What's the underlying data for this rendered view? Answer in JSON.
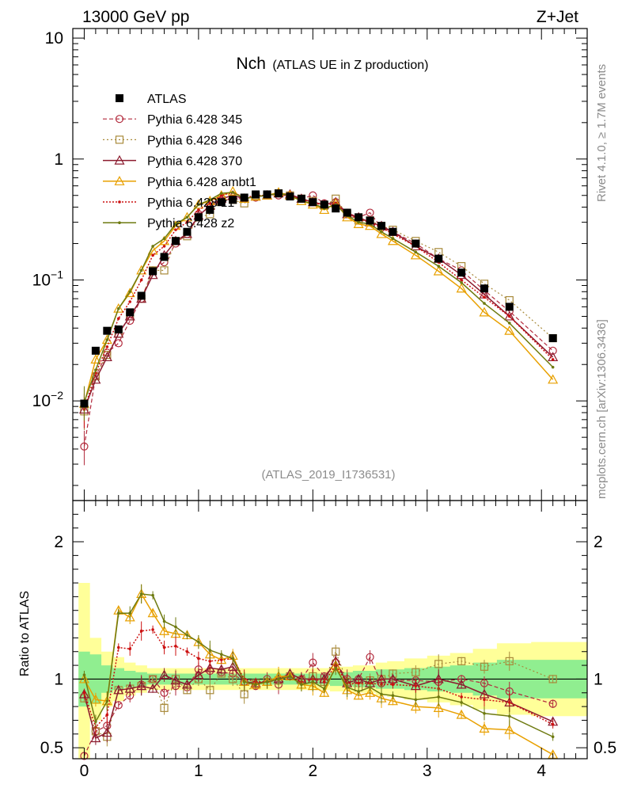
{
  "header": {
    "left": "13000 GeV pp",
    "right": "Z+Jet"
  },
  "side_labels": {
    "rivet": "Rivet 4.1.0, ≥ 1.7M events",
    "mcplots": "mcplots.cern.ch [arXiv:1306.3436]"
  },
  "analysis_id": "(ATLAS_2019_I1736531)",
  "colors": {
    "data": "#000000",
    "p345": "#b22a3c",
    "p346": "#a88a3a",
    "p370": "#8b1a2e",
    "ambt1": "#e8a000",
    "z1": "#cc1010",
    "z2": "#6e7a10",
    "band_inner": "#90ee90",
    "band_outer": "#ffff99"
  },
  "chart_data": [
    {
      "type": "scatter",
      "title": "Nch",
      "subtitle": "(ATLAS UE in Z production)",
      "yscale": "log",
      "xlim": [
        -0.1,
        4.4
      ],
      "ylim": [
        0.0015,
        12
      ],
      "yticks": [
        {
          "value": 10,
          "label": "10"
        },
        {
          "value": 1,
          "label": "1"
        },
        {
          "value": 0.1,
          "label": "10",
          "sup": "−1"
        },
        {
          "value": 0.01,
          "label": "10",
          "sup": "−2"
        }
      ],
      "legend": [
        "ATLAS",
        "Pythia 6.428 345",
        "Pythia 6.428 346",
        "Pythia 6.428 370",
        "Pythia 6.428 ambt1",
        "Pythia 6.428 z1",
        "Pythia 6.428 z2"
      ],
      "x": [
        0.0,
        0.1,
        0.2,
        0.3,
        0.4,
        0.5,
        0.6,
        0.7,
        0.8,
        0.9,
        1.0,
        1.1,
        1.2,
        1.3,
        1.4,
        1.5,
        1.6,
        1.7,
        1.8,
        1.9,
        2.0,
        2.1,
        2.2,
        2.3,
        2.4,
        2.5,
        2.6,
        2.7,
        2.9,
        3.1,
        3.3,
        3.5,
        3.72,
        4.1
      ],
      "data_values": [
        0.0095,
        0.026,
        0.038,
        0.039,
        0.054,
        0.074,
        0.118,
        0.155,
        0.21,
        0.25,
        0.33,
        0.38,
        0.44,
        0.46,
        0.48,
        0.51,
        0.51,
        0.52,
        0.49,
        0.47,
        0.44,
        0.42,
        0.39,
        0.36,
        0.33,
        0.31,
        0.28,
        0.25,
        0.2,
        0.15,
        0.115,
        0.085,
        0.06,
        0.033
      ],
      "series": [
        {
          "name": "Pythia 6.428 345",
          "values": [
            0.0042,
            0.016,
            0.025,
            0.03,
            0.046,
            0.07,
            0.12,
            0.14,
            0.2,
            0.24,
            0.35,
            0.4,
            0.45,
            0.47,
            0.47,
            0.48,
            0.51,
            0.5,
            0.5,
            0.47,
            0.5,
            0.43,
            0.44,
            0.36,
            0.33,
            0.36,
            0.27,
            0.25,
            0.2,
            0.15,
            0.12,
            0.082,
            0.055,
            0.026
          ]
        },
        {
          "name": "Pythia 6.428 346",
          "values": [
            0.0082,
            0.016,
            0.024,
            0.036,
            0.05,
            0.07,
            0.12,
            0.12,
            0.21,
            0.23,
            0.33,
            0.35,
            0.46,
            0.46,
            0.43,
            0.5,
            0.5,
            0.52,
            0.5,
            0.47,
            0.45,
            0.41,
            0.47,
            0.35,
            0.31,
            0.31,
            0.28,
            0.26,
            0.21,
            0.17,
            0.13,
            0.093,
            0.068,
            0.033
          ]
        },
        {
          "name": "Pythia 6.428 370",
          "values": [
            0.0085,
            0.015,
            0.023,
            0.036,
            0.05,
            0.07,
            0.11,
            0.16,
            0.21,
            0.24,
            0.34,
            0.41,
            0.47,
            0.5,
            0.47,
            0.49,
            0.5,
            0.52,
            0.51,
            0.47,
            0.44,
            0.42,
            0.44,
            0.35,
            0.33,
            0.3,
            0.28,
            0.25,
            0.19,
            0.15,
            0.11,
            0.076,
            0.05,
            0.023
          ]
        },
        {
          "name": "Pythia 6.428 ambt1",
          "values": [
            0.0095,
            0.022,
            0.032,
            0.058,
            0.078,
            0.12,
            0.175,
            0.21,
            0.28,
            0.33,
            0.42,
            0.45,
            0.5,
            0.54,
            0.47,
            0.49,
            0.5,
            0.53,
            0.5,
            0.45,
            0.42,
            0.38,
            0.43,
            0.33,
            0.29,
            0.28,
            0.24,
            0.21,
            0.16,
            0.118,
            0.085,
            0.054,
            0.038,
            0.015
          ]
        },
        {
          "name": "Pythia 6.428 z1",
          "values": [
            0.0085,
            0.017,
            0.028,
            0.048,
            0.066,
            0.1,
            0.16,
            0.19,
            0.26,
            0.3,
            0.38,
            0.43,
            0.5,
            0.53,
            0.48,
            0.5,
            0.5,
            0.52,
            0.5,
            0.46,
            0.44,
            0.41,
            0.43,
            0.35,
            0.32,
            0.3,
            0.27,
            0.24,
            0.19,
            0.14,
            0.1,
            0.072,
            0.05,
            0.022
          ]
        },
        {
          "name": "Pythia 6.428 z2",
          "values": [
            0.0098,
            0.018,
            0.032,
            0.058,
            0.08,
            0.12,
            0.19,
            0.22,
            0.29,
            0.33,
            0.42,
            0.46,
            0.52,
            0.53,
            0.47,
            0.49,
            0.5,
            0.52,
            0.5,
            0.45,
            0.43,
            0.39,
            0.42,
            0.34,
            0.3,
            0.29,
            0.25,
            0.22,
            0.17,
            0.13,
            0.095,
            0.064,
            0.044,
            0.019
          ]
        }
      ]
    },
    {
      "type": "line",
      "ylabel": "Ratio to ATLAS",
      "ylim": [
        0.42,
        2.3
      ],
      "xlim": [
        -0.1,
        4.4
      ],
      "xticks": [
        0,
        1,
        2,
        3,
        4
      ],
      "yticks": [
        {
          "value": 2,
          "label": "2"
        },
        {
          "value": 1,
          "label": "1"
        },
        {
          "value": 0.5,
          "label": "0.5"
        }
      ],
      "x": [
        0.0,
        0.1,
        0.2,
        0.3,
        0.4,
        0.5,
        0.6,
        0.7,
        0.8,
        0.9,
        1.0,
        1.1,
        1.2,
        1.3,
        1.4,
        1.5,
        1.6,
        1.7,
        1.8,
        1.9,
        2.0,
        2.1,
        2.2,
        2.3,
        2.4,
        2.5,
        2.6,
        2.7,
        2.9,
        3.1,
        3.3,
        3.5,
        3.72,
        4.1
      ],
      "band_inner": [
        0.2,
        0.18,
        0.1,
        0.08,
        0.06,
        0.05,
        0.04,
        0.04,
        0.04,
        0.04,
        0.04,
        0.04,
        0.04,
        0.04,
        0.04,
        0.04,
        0.04,
        0.04,
        0.04,
        0.04,
        0.04,
        0.04,
        0.05,
        0.05,
        0.06,
        0.06,
        0.07,
        0.07,
        0.08,
        0.09,
        0.1,
        0.12,
        0.14,
        0.14
      ],
      "band_outer": [
        0.7,
        0.3,
        0.2,
        0.16,
        0.12,
        0.1,
        0.08,
        0.08,
        0.08,
        0.08,
        0.08,
        0.08,
        0.08,
        0.08,
        0.08,
        0.08,
        0.08,
        0.08,
        0.08,
        0.08,
        0.08,
        0.08,
        0.09,
        0.09,
        0.1,
        0.1,
        0.12,
        0.13,
        0.15,
        0.17,
        0.19,
        0.22,
        0.26,
        0.27
      ],
      "series": [
        {
          "name": "Pythia 6.428 345",
          "values": [
            0.44,
            0.62,
            0.66,
            0.81,
            0.88,
            0.96,
            1.0,
            0.9,
            0.95,
            0.94,
            1.07,
            1.06,
            1.05,
            1.04,
            0.98,
            0.95,
            1.0,
            0.96,
            1.02,
            1.0,
            1.12,
            1.02,
            1.12,
            1.0,
            1.0,
            1.16,
            0.97,
            0.99,
            0.99,
            0.98,
            1.0,
            0.97,
            0.91,
            0.82
          ]
        },
        {
          "name": "Pythia 6.428 346",
          "values": [
            0.86,
            0.62,
            0.58,
            0.92,
            0.93,
            0.95,
            1.0,
            0.79,
            1.0,
            0.92,
            1.0,
            0.92,
            1.04,
            1.0,
            0.89,
            0.97,
            0.98,
            0.99,
            1.02,
            0.99,
            1.02,
            0.98,
            1.2,
            0.98,
            0.94,
            0.99,
            1.0,
            1.04,
            1.05,
            1.11,
            1.13,
            1.09,
            1.13,
            1.0
          ]
        },
        {
          "name": "Pythia 6.428 370",
          "values": [
            0.89,
            0.57,
            0.61,
            0.92,
            0.93,
            0.95,
            0.93,
            1.03,
            0.99,
            0.96,
            1.03,
            1.08,
            1.07,
            1.09,
            0.98,
            0.97,
            0.98,
            1.0,
            1.04,
            1.0,
            1.0,
            1.0,
            1.13,
            0.97,
            1.0,
            0.97,
            1.0,
            1.0,
            0.95,
            1.0,
            0.96,
            0.89,
            0.83,
            0.69
          ]
        },
        {
          "name": "Pythia 6.428 ambt1",
          "values": [
            1.0,
            0.85,
            0.84,
            1.5,
            1.45,
            1.62,
            1.48,
            1.35,
            1.33,
            1.32,
            1.27,
            1.18,
            1.14,
            1.17,
            0.98,
            0.96,
            0.98,
            1.02,
            1.02,
            0.96,
            0.95,
            0.9,
            1.1,
            0.92,
            0.88,
            0.9,
            0.86,
            0.84,
            0.8,
            0.79,
            0.74,
            0.64,
            0.63,
            0.45
          ]
        },
        {
          "name": "Pythia 6.428 z1",
          "values": [
            0.9,
            0.65,
            0.74,
            1.23,
            1.22,
            1.35,
            1.36,
            1.23,
            1.24,
            1.2,
            1.15,
            1.13,
            1.14,
            1.15,
            1.0,
            0.98,
            0.98,
            1.0,
            1.02,
            0.98,
            1.0,
            0.98,
            1.1,
            0.97,
            0.97,
            0.97,
            0.96,
            0.96,
            0.95,
            0.93,
            0.87,
            0.85,
            0.83,
            0.67
          ]
        },
        {
          "name": "Pythia 6.428 z2",
          "values": [
            1.03,
            0.69,
            0.84,
            1.48,
            1.48,
            1.62,
            1.61,
            1.42,
            1.38,
            1.32,
            1.27,
            1.21,
            1.18,
            1.15,
            0.98,
            0.96,
            0.98,
            1.0,
            1.02,
            0.96,
            0.98,
            0.93,
            1.08,
            0.94,
            0.91,
            0.94,
            0.89,
            0.88,
            0.85,
            0.87,
            0.83,
            0.75,
            0.73,
            0.58
          ]
        }
      ]
    }
  ]
}
